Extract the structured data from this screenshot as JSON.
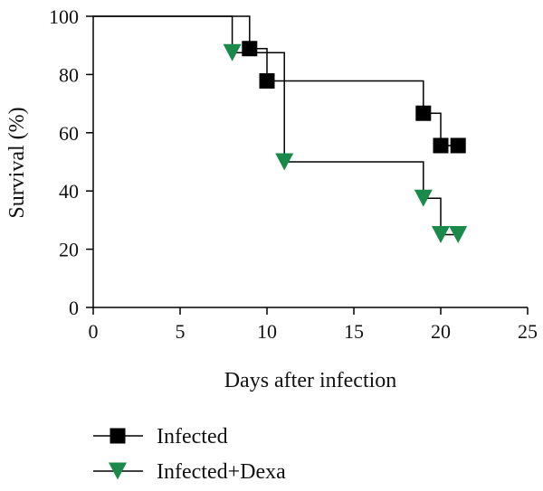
{
  "chart_data": {
    "type": "line",
    "subtype": "kaplan-meier-step",
    "xlabel": "Days after infection",
    "ylabel": "Survival (%)",
    "xlim": [
      0,
      25
    ],
    "ylim": [
      0,
      100
    ],
    "x_ticks": [
      0,
      5,
      10,
      15,
      20,
      25
    ],
    "y_ticks": [
      0,
      20,
      40,
      60,
      80,
      100
    ],
    "grid": false,
    "legend_position": "bottom-left",
    "series": [
      {
        "name": "Infected",
        "color": "#000000",
        "marker": "square",
        "steps": [
          [
            0,
            100
          ],
          [
            9,
            88.9
          ],
          [
            10,
            77.8
          ],
          [
            19,
            66.7
          ],
          [
            20,
            55.6
          ],
          [
            21,
            55.6
          ]
        ],
        "markers": [
          [
            9,
            88.9
          ],
          [
            10,
            77.8
          ],
          [
            19,
            66.7
          ],
          [
            20,
            55.6
          ],
          [
            21,
            55.6
          ]
        ]
      },
      {
        "name": "Infected+Dexa",
        "color": "#1a8a4a",
        "marker": "triangle-down",
        "steps": [
          [
            0,
            100
          ],
          [
            8,
            87.5
          ],
          [
            11,
            50
          ],
          [
            19,
            37.5
          ],
          [
            20,
            25
          ],
          [
            21,
            25
          ]
        ],
        "markers": [
          [
            8,
            87.5
          ],
          [
            11,
            50
          ],
          [
            19,
            37.5
          ],
          [
            20,
            25
          ],
          [
            21,
            25
          ]
        ]
      }
    ]
  }
}
